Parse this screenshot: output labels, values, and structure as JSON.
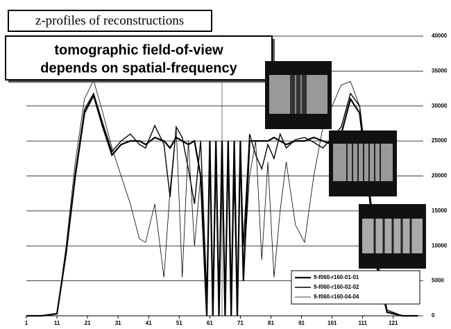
{
  "chart_data": {
    "type": "line",
    "title": "z-profiles of reconstructions",
    "subtitle": [
      "tomographic field-of-view",
      "depends on spatial-frequency"
    ],
    "x": [
      1,
      6,
      11,
      14,
      17,
      20,
      23,
      26,
      29,
      32,
      35,
      38,
      40,
      43,
      46,
      48,
      50,
      52,
      54,
      56,
      58,
      60,
      61,
      62,
      63,
      64,
      65,
      66,
      67,
      68,
      69,
      70,
      71,
      72,
      74,
      76,
      78,
      80,
      82,
      84,
      86,
      89,
      92,
      95,
      98,
      101,
      104,
      107,
      110,
      113,
      116,
      119,
      124,
      129
    ],
    "series": [
      {
        "name": "9-f060-r160-01-01",
        "color": "#000000",
        "values": [
          0,
          0,
          300,
          9000,
          20000,
          29000,
          31500,
          27000,
          23000,
          24500,
          25000,
          25000,
          24500,
          25500,
          25000,
          24000,
          25500,
          25000,
          24500,
          25000,
          20000,
          0,
          25000,
          0,
          25000,
          0,
          25000,
          0,
          25000,
          0,
          25000,
          0,
          25000,
          5000,
          25000,
          25000,
          25000,
          25000,
          25500,
          25000,
          24500,
          25000,
          25000,
          25500,
          25000,
          24500,
          26000,
          31000,
          29000,
          18000,
          6000,
          500,
          0,
          0
        ]
      },
      {
        "name": "9-f060-r160-02-02",
        "color": "#000000",
        "values": [
          0,
          0,
          300,
          9000,
          20500,
          29500,
          31800,
          27500,
          23500,
          25000,
          26000,
          24500,
          24000,
          27200,
          24500,
          17000,
          27000,
          25500,
          21000,
          16000,
          25000,
          3000,
          23000,
          0,
          22000,
          3000,
          25000,
          0,
          25000,
          4000,
          20000,
          0,
          24000,
          10000,
          26000,
          23000,
          21000,
          24500,
          22500,
          26000,
          24000,
          25200,
          25500,
          24800,
          24000,
          25500,
          27000,
          31800,
          30000,
          19000,
          7000,
          800,
          0,
          0
        ]
      },
      {
        "name": "9-f060-r160-04-04",
        "color": "#000000",
        "values": [
          0,
          0,
          300,
          10000,
          22000,
          31000,
          33700,
          29000,
          24000,
          20000,
          16000,
          11000,
          10500,
          16000,
          5500,
          18000,
          27000,
          5500,
          25000,
          10000,
          20000,
          0,
          25000,
          0,
          25000,
          0,
          25000,
          0,
          25000,
          0,
          25000,
          0,
          25000,
          6000,
          20000,
          25000,
          8000,
          22000,
          5500,
          15000,
          22000,
          13000,
          10500,
          20000,
          27000,
          30000,
          33000,
          33500,
          30000,
          19000,
          8000,
          800,
          0,
          0
        ]
      }
    ],
    "xlim": [
      1,
      129
    ],
    "xticks": [
      1,
      11,
      21,
      31,
      41,
      51,
      61,
      71,
      81,
      91,
      101,
      111,
      121
    ],
    "ylim": [
      0,
      40000
    ],
    "yticks": [
      0,
      5000,
      10000,
      15000,
      20000,
      25000,
      30000,
      35000,
      40000
    ],
    "grid": true
  }
}
